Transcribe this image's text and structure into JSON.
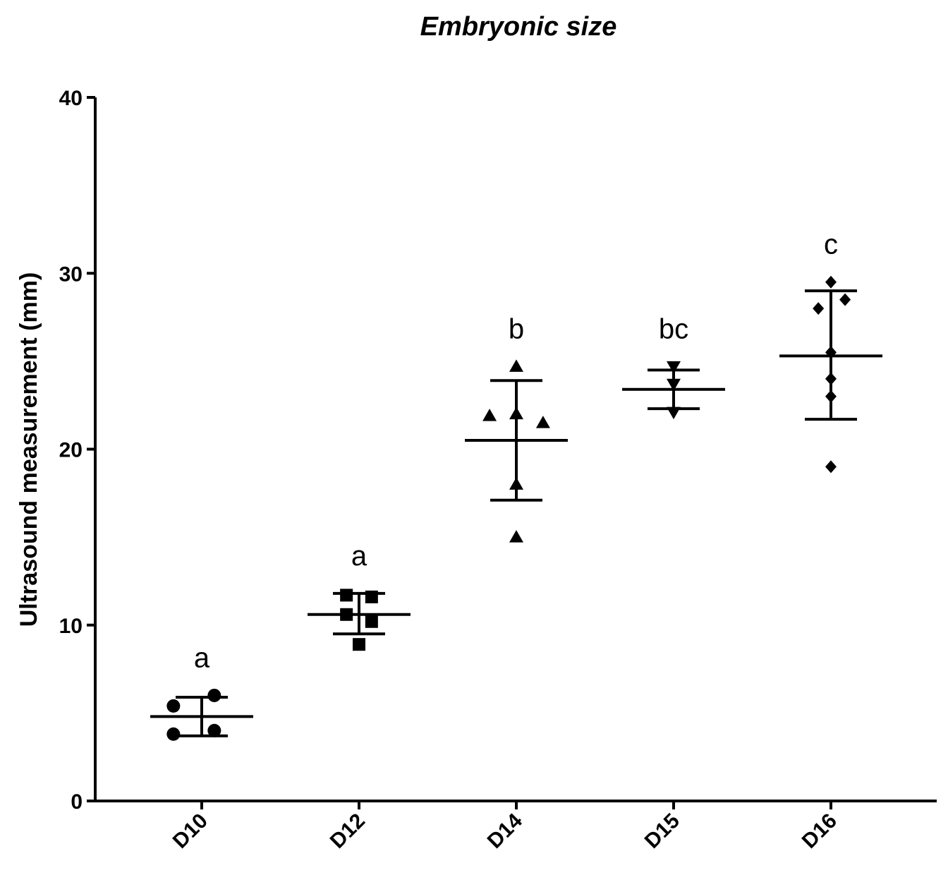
{
  "chart_data": {
    "type": "scatter",
    "title": "Embryonic size",
    "xlabel": "",
    "ylabel": "Ultrasound measurement (mm)",
    "ylim": [
      0,
      40
    ],
    "yticks": [
      0,
      10,
      20,
      30,
      40
    ],
    "grid": false,
    "categories": [
      "D10",
      "D12",
      "D14",
      "D15",
      "D16"
    ],
    "series": [
      {
        "name": "D10",
        "marker": "circle",
        "points": [
          {
            "offset": -0.18,
            "value": 5.4
          },
          {
            "offset": 0.08,
            "value": 6.0
          },
          {
            "offset": -0.18,
            "value": 3.8
          },
          {
            "offset": 0.08,
            "value": 4.0
          }
        ],
        "mean": 4.8,
        "sd_low": 3.7,
        "sd_high": 5.9,
        "significance": "a"
      },
      {
        "name": "D12",
        "marker": "square",
        "points": [
          {
            "offset": -0.08,
            "value": 11.7
          },
          {
            "offset": 0.08,
            "value": 11.6
          },
          {
            "offset": -0.08,
            "value": 10.6
          },
          {
            "offset": 0.08,
            "value": 10.2
          },
          {
            "offset": 0.0,
            "value": 8.9
          }
        ],
        "mean": 10.6,
        "sd_low": 9.5,
        "sd_high": 11.8,
        "significance": "a"
      },
      {
        "name": "D14",
        "marker": "triangle-up",
        "points": [
          {
            "offset": 0.0,
            "value": 24.7
          },
          {
            "offset": -0.17,
            "value": 21.9
          },
          {
            "offset": 0.0,
            "value": 22.0
          },
          {
            "offset": 0.17,
            "value": 21.5
          },
          {
            "offset": 0.0,
            "value": 18.0
          },
          {
            "offset": 0.0,
            "value": 15.0
          }
        ],
        "mean": 20.5,
        "sd_low": 17.1,
        "sd_high": 23.9,
        "significance": "b"
      },
      {
        "name": "D15",
        "marker": "triangle-down",
        "points": [
          {
            "offset": 0.0,
            "value": 24.7
          },
          {
            "offset": 0.0,
            "value": 23.7
          },
          {
            "offset": 0.0,
            "value": 22.1
          }
        ],
        "mean": 23.4,
        "sd_low": 22.3,
        "sd_high": 24.5,
        "significance": "bc"
      },
      {
        "name": "D16",
        "marker": "diamond",
        "points": [
          {
            "offset": 0.0,
            "value": 29.5
          },
          {
            "offset": -0.08,
            "value": 28.0
          },
          {
            "offset": 0.09,
            "value": 28.5
          },
          {
            "offset": 0.0,
            "value": 25.5
          },
          {
            "offset": 0.0,
            "value": 24.0
          },
          {
            "offset": 0.0,
            "value": 23.0
          },
          {
            "offset": 0.0,
            "value": 19.0
          }
        ],
        "mean": 25.3,
        "sd_low": 21.7,
        "sd_high": 29.0,
        "significance": "c"
      }
    ]
  }
}
